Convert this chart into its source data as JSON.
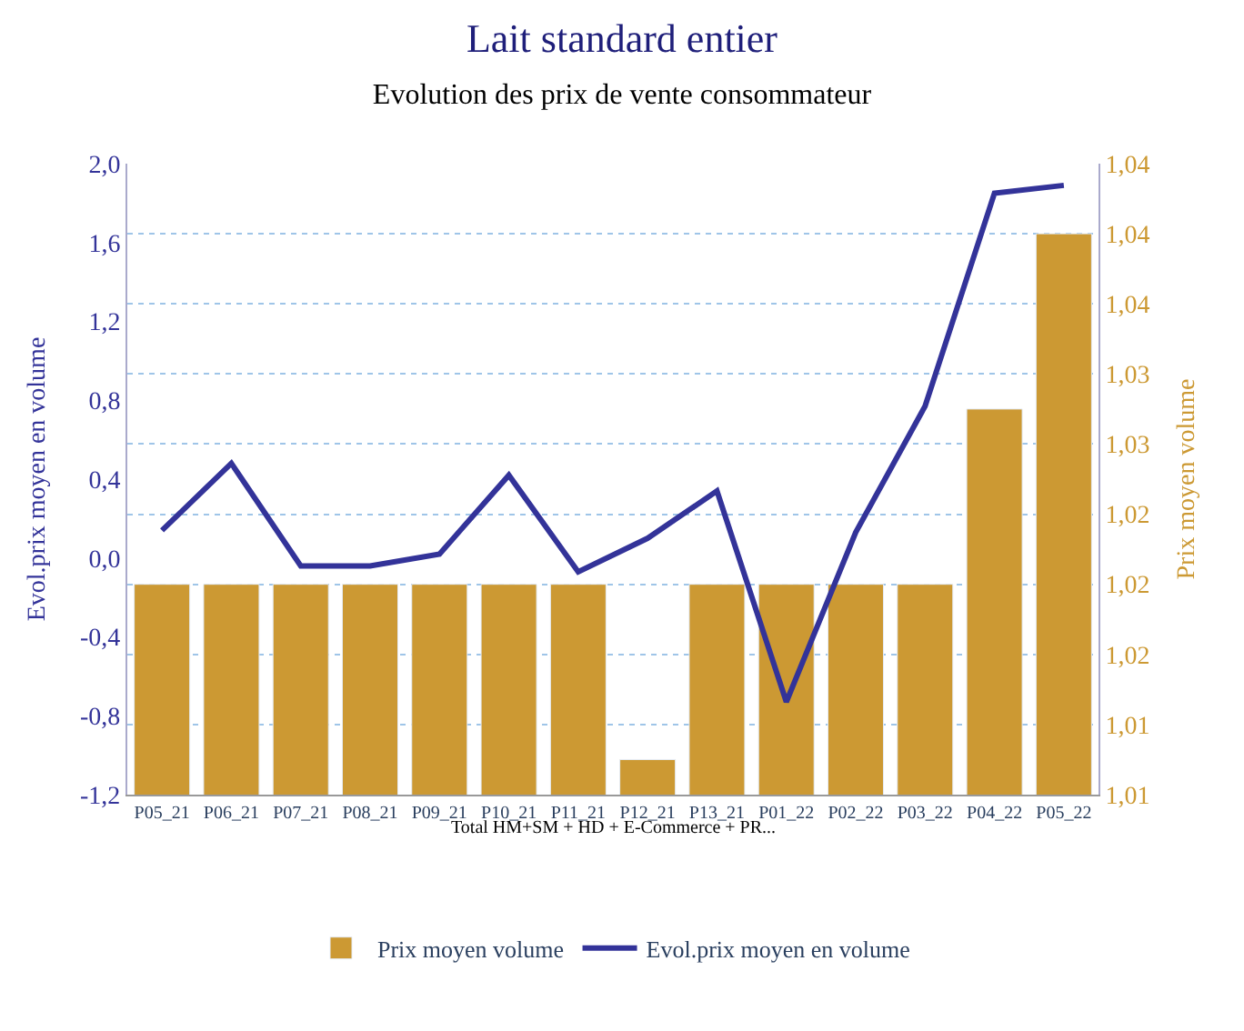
{
  "chart_data": {
    "type": "bar",
    "title": "Lait standard entier",
    "subtitle": "Evolution des prix de vente consommateur",
    "ylabel": "Evol.prix moyen en volume",
    "y2label": "Prix moyen volume",
    "categories": [
      "P05_21",
      "P06_21",
      "P07_21",
      "P08_21",
      "P09_21",
      "P10_21",
      "P11_21",
      "P12_21",
      "P13_21",
      "P01_22",
      "P02_22",
      "P03_22",
      "P04_22",
      "P05_22"
    ],
    "series": [
      {
        "name": "Evol.prix moyen en volume",
        "type": "line",
        "color": "#333399",
        "values": [
          0.14,
          0.48,
          -0.04,
          -0.04,
          0.02,
          0.42,
          -0.07,
          0.1,
          0.34,
          -0.73,
          0.13,
          0.77,
          1.85,
          1.89
        ]
      },
      {
        "name": "Prix moyen volume",
        "axis": "y2",
        "color": "#cc9933",
        "values": [
          1.02,
          1.02,
          1.02,
          1.02,
          1.02,
          1.02,
          1.02,
          1.01,
          1.02,
          1.02,
          1.02,
          1.02,
          1.03,
          1.04
        ]
      }
    ],
    "ylim": [
      -1.2,
      2.0
    ],
    "yticks": [
      {
        "value": -1.2,
        "label": "-1,2"
      },
      {
        "value": -0.8,
        "label": "-0,8"
      },
      {
        "value": -0.4,
        "label": "-0,4"
      },
      {
        "value": 0,
        "label": "0,0"
      },
      {
        "value": 0.4,
        "label": "0,4"
      },
      {
        "value": 0.8,
        "label": "0,8"
      },
      {
        "value": 1.2,
        "label": "1,2"
      },
      {
        "value": 1.6,
        "label": "1,6"
      },
      {
        "value": 2.0,
        "label": "2,0"
      }
    ],
    "y2lim": [
      1.008,
      1.044
    ],
    "y2ticks": [
      {
        "value": 1.008,
        "label": "1,01"
      },
      {
        "value": 1.012,
        "label": "1,01"
      },
      {
        "value": 1.016,
        "label": "1,02"
      },
      {
        "value": 1.02,
        "label": "1,02"
      },
      {
        "value": 1.024,
        "label": "1,02"
      },
      {
        "value": 1.028,
        "label": "1,03"
      },
      {
        "value": 1.032,
        "label": "1,03"
      },
      {
        "value": 1.036,
        "label": "1,04"
      },
      {
        "value": 1.04,
        "label": "1,04"
      },
      {
        "value": 1.044,
        "label": "1,04"
      }
    ],
    "annotations": [
      "Total HM+SM + HD + E-Commerce + PR..."
    ],
    "grid": "y2",
    "legend": "bottom",
    "marker": "none",
    "line_style": "solid"
  }
}
